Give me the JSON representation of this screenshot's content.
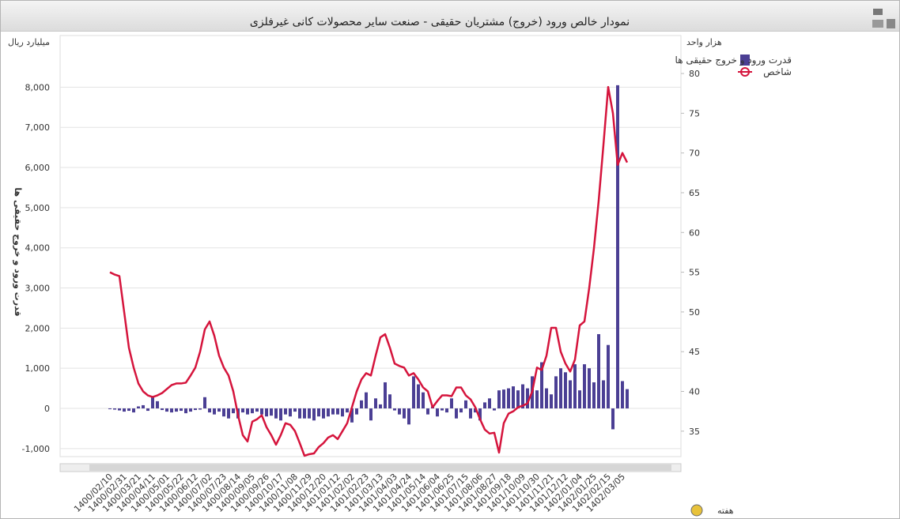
{
  "chart_data": {
    "type": "bar",
    "title": "نمودار خالص ورود (خروج) مشتریان حقیقی - صنعت سایر محصولات کانی غیرفلزی",
    "y_unit": "میلیارد ریال",
    "y2_unit": "هزار واحد",
    "ylabel": "قدرت ورود و خروج حقیقی ها",
    "xlabel": "هفته",
    "categories": [
      "1400/02/10",
      null,
      null,
      "1400/02/31",
      null,
      null,
      "1400/03/21",
      null,
      null,
      "1400/04/11",
      null,
      null,
      "1400/05/01",
      null,
      null,
      "1400/05/22",
      null,
      null,
      "1400/06/12",
      null,
      null,
      "1400/07/02",
      null,
      null,
      "1400/07/23",
      null,
      null,
      "1400/08/14",
      null,
      null,
      "1400/09/05",
      null,
      null,
      "1400/09/26",
      null,
      null,
      "1400/10/17",
      null,
      null,
      "1400/11/08",
      null,
      null,
      "1400/11/29",
      null,
      null,
      "1400/12/20",
      null,
      null,
      "1401/01/12",
      null,
      null,
      "1401/02/02",
      null,
      null,
      "1401/02/23",
      null,
      null,
      "1401/03/13",
      null,
      null,
      "1401/04/03",
      null,
      null,
      "1401/04/24",
      null,
      null,
      "1401/05/14",
      null,
      null,
      "1401/06/04",
      null,
      null,
      "1401/06/25",
      null,
      null,
      "1401/07/15",
      null,
      null,
      "1401/08/06",
      null,
      null,
      "1401/08/27",
      null,
      null,
      "1401/09/18",
      null,
      null,
      "1401/10/09",
      null,
      null,
      "1401/10/30",
      null,
      null,
      "1401/11/21",
      null,
      null,
      "1401/12/12",
      null,
      null,
      "1402/01/04",
      null,
      null,
      "1402/01/25",
      null,
      null,
      "1402/02/15",
      null,
      null,
      "1402/03/05",
      null
    ],
    "series": [
      {
        "name": "قدرت ورود و خروج حقیقی ها",
        "type": "bar",
        "color": "#4b3f94",
        "values": [
          -20,
          -30,
          -50,
          -80,
          -60,
          -100,
          50,
          80,
          -60,
          280,
          180,
          -40,
          -80,
          -100,
          -80,
          -60,
          -120,
          -80,
          -40,
          -30,
          280,
          -100,
          -150,
          -80,
          -200,
          -250,
          -120,
          -250,
          -100,
          -150,
          -120,
          -80,
          -150,
          -200,
          -180,
          -250,
          -300,
          -150,
          -200,
          -80,
          -250,
          -250,
          -250,
          -300,
          -200,
          -250,
          -200,
          -150,
          -150,
          -200,
          -100,
          -350,
          -150,
          200,
          400,
          -300,
          250,
          100,
          650,
          350,
          -50,
          -150,
          -250,
          -400,
          800,
          600,
          400,
          -150,
          50,
          -200,
          -50,
          -100,
          250,
          -250,
          -100,
          200,
          -250,
          -100,
          -300,
          150,
          250,
          -50,
          450,
          470,
          500,
          550,
          450,
          600,
          500,
          800,
          450,
          1150,
          500,
          350,
          800,
          1000,
          900,
          700,
          1100,
          450,
          1100,
          1000,
          650,
          1850,
          700,
          1580,
          -520,
          8050,
          680,
          480
        ]
      },
      {
        "name": "شاخص",
        "type": "line",
        "axis": "y2",
        "color": "#d5143c",
        "values": [
          55,
          54.7,
          54.5,
          50,
          45.5,
          43,
          41,
          40,
          39.5,
          39.3,
          39.5,
          39.8,
          40.3,
          40.8,
          41,
          41,
          41.1,
          42,
          43,
          45,
          47.8,
          48.8,
          47,
          44.5,
          43,
          42,
          40,
          37,
          34.5,
          33.7,
          36.2,
          36.5,
          37,
          35.5,
          34.5,
          33.3,
          34.5,
          36,
          35.8,
          35,
          33.5,
          31.9,
          32.1,
          32.2,
          33,
          33.5,
          34.2,
          34.5,
          34,
          35,
          36,
          38,
          40,
          41.5,
          42.3,
          42,
          44.5,
          46.8,
          47.2,
          45.5,
          43.5,
          43.2,
          43,
          42,
          42.3,
          41.5,
          40.5,
          40,
          38,
          38.8,
          39.5,
          39.5,
          39.4,
          40.5,
          40.5,
          39.5,
          39,
          38,
          36.5,
          35.2,
          34.7,
          34.8,
          32.3,
          36,
          37.2,
          37.5,
          38,
          38.2,
          38.5,
          40,
          43,
          42.7,
          44.5,
          48,
          48,
          45,
          43.5,
          42.5,
          44,
          48.3,
          48.8,
          53,
          58,
          64,
          71,
          78.3,
          75,
          68.5,
          70,
          68.8
        ]
      }
    ],
    "ylim": [
      -1200,
      8500
    ],
    "yticks": [
      {
        "value": -1000,
        "label": "-1,000"
      },
      0,
      {
        "value": 1000,
        "label": "1,000"
      },
      {
        "value": 2000,
        "label": "2,000"
      },
      {
        "value": 3000,
        "label": "3,000"
      },
      {
        "value": 4000,
        "label": "4,000"
      },
      {
        "value": 5000,
        "label": "5,000"
      },
      {
        "value": 6000,
        "label": "6,000"
      },
      {
        "value": 7000,
        "label": "7,000"
      },
      {
        "value": 8000,
        "label": "8,000"
      }
    ],
    "y2lim": [
      31.8,
      80.8
    ],
    "y2ticks": [
      35,
      40,
      45,
      50,
      55,
      60,
      65,
      70,
      75,
      80
    ],
    "grid": true
  }
}
